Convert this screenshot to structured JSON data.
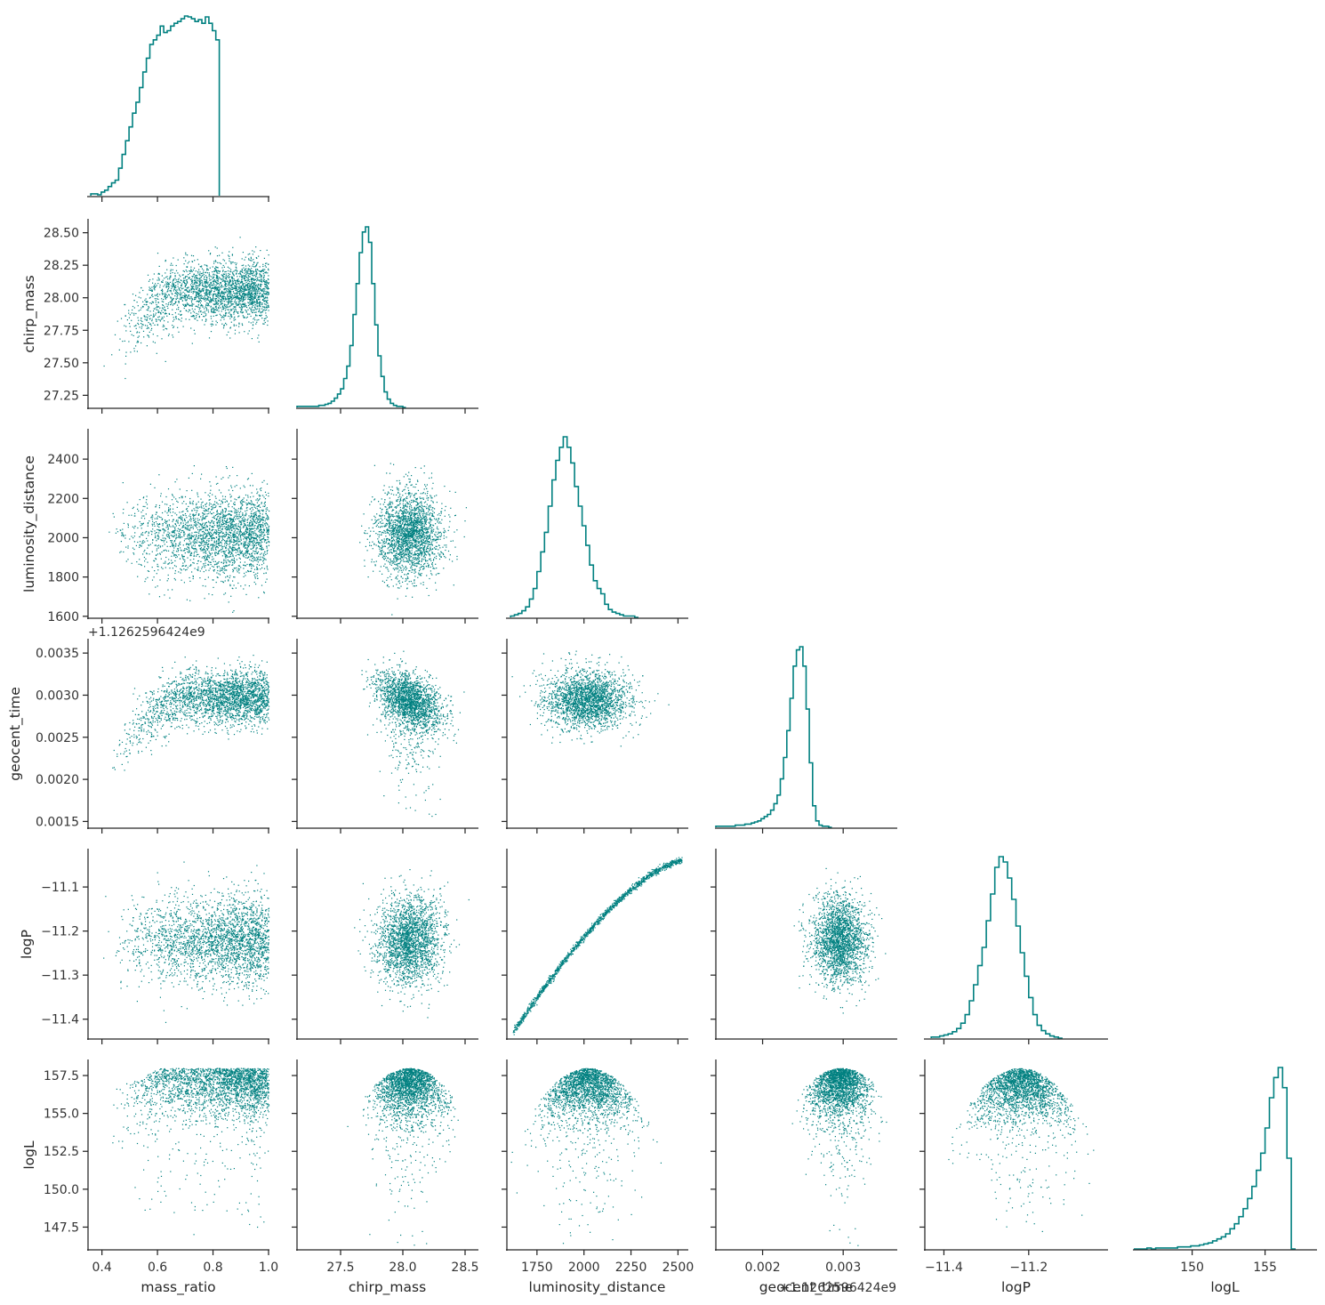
{
  "chart_data": {
    "type": "corner_pairplot",
    "color": "#008080",
    "variables": [
      "mass_ratio",
      "chirp_mass",
      "luminosity_distance",
      "geocent_time",
      "logP",
      "logL"
    ],
    "axis_labels": {
      "x": [
        "mass_ratio",
        "chirp_mass",
        "luminosity_distance",
        "geocent_time",
        "logP",
        "logL"
      ],
      "y": [
        "",
        "chirp_mass",
        "luminosity_distance",
        "geocent_time",
        "logP",
        "logL"
      ]
    },
    "offset_labels": {
      "geocent_time_y": "+1.1262596424e9",
      "geocent_time_x": "+1.1262596424e9"
    },
    "ranges": {
      "mass_ratio": [
        0.35,
        1.0
      ],
      "chirp_mass": [
        27.15,
        28.6
      ],
      "luminosity_distance": [
        1590,
        2550
      ],
      "geocent_time": [
        0.00142,
        0.00366
      ],
      "logP": [
        -11.445,
        -11.015
      ],
      "logL": [
        146.0,
        158.5
      ]
    },
    "ticks": {
      "mass_ratio": [
        0.4,
        0.6,
        0.8,
        1.0
      ],
      "chirp_mass": [
        27.25,
        27.5,
        27.75,
        28.0,
        28.25,
        28.5
      ],
      "chirp_mass_x": [
        27.5,
        28.0,
        28.5
      ],
      "luminosity_distance": [
        1600,
        1800,
        2000,
        2200,
        2400
      ],
      "luminosity_distance_x": [
        1750,
        2000,
        2250,
        2500
      ],
      "geocent_time": [
        0.0015,
        0.002,
        0.0025,
        0.003,
        0.0035
      ],
      "geocent_time_x": [
        0.002,
        0.003
      ],
      "logP": [
        -11.4,
        -11.3,
        -11.2,
        -11.1
      ],
      "logP_x": [
        -11.4,
        -11.2
      ],
      "logL": [
        147.5,
        150.0,
        152.5,
        155.0,
        157.5
      ],
      "logL_x": [
        150,
        155
      ]
    },
    "tick_labels": {
      "mass_ratio": [
        "0.4",
        "0.6",
        "0.8",
        "1.0"
      ],
      "chirp_mass": [
        "27.25",
        "27.50",
        "27.75",
        "28.00",
        "28.25",
        "28.50"
      ],
      "chirp_mass_x": [
        "27.5",
        "28.0",
        "28.5"
      ],
      "luminosity_distance": [
        "1600",
        "1800",
        "2000",
        "2200",
        "2400"
      ],
      "luminosity_distance_x": [
        "1750",
        "2000",
        "2250",
        "2500"
      ],
      "geocent_time": [
        "0.0015",
        "0.0020",
        "0.0025",
        "0.0030",
        "0.0035"
      ],
      "geocent_time_x": [
        "0.002",
        "0.003"
      ],
      "logP": [
        "−11.4",
        "−11.3",
        "−11.2",
        "−11.1"
      ],
      "logP_x": [
        "−11.4",
        "−11.2"
      ],
      "logL": [
        "147.5",
        "150.0",
        "152.5",
        "155.0",
        "157.5"
      ],
      "logL_x": [
        "150",
        "155"
      ]
    },
    "marginals": {
      "mass_ratio": {
        "type": "step_histogram",
        "edges_start": 0.36,
        "bin_width": 0.0125,
        "counts": [
          2,
          2,
          1,
          4,
          6,
          10,
          14,
          17,
          30,
          45,
          60,
          75,
          90,
          102,
          118,
          135,
          150,
          165,
          170,
          175,
          185,
          178,
          180,
          185,
          188,
          190,
          193,
          196,
          195,
          193,
          190,
          192,
          188,
          195,
          188,
          180,
          170
        ]
      },
      "chirp_mass": {
        "type": "step_histogram",
        "edges_start": 27.15,
        "bin_width": 0.025,
        "counts": [
          1,
          1,
          1,
          1,
          1,
          1,
          1,
          2,
          2,
          3,
          4,
          6,
          9,
          13,
          18,
          28,
          40,
          60,
          90,
          120,
          150,
          170,
          175,
          160,
          120,
          80,
          50,
          30,
          15,
          8,
          4,
          2,
          1,
          1,
          0
        ]
      },
      "luminosity_distance": {
        "type": "step_histogram",
        "edges_start": 1610,
        "bin_width": 20,
        "counts": [
          1,
          2,
          3,
          5,
          8,
          14,
          22,
          35,
          50,
          65,
          85,
          105,
          120,
          130,
          138,
          130,
          118,
          100,
          85,
          70,
          55,
          40,
          28,
          22,
          18,
          10,
          6,
          4,
          3,
          2,
          1,
          1,
          1,
          0
        ]
      },
      "geocent_time": {
        "type": "step_histogram",
        "edges_start": 0.00142,
        "bin_width": 4e-05,
        "counts": [
          1,
          1,
          1,
          1,
          1,
          1,
          2,
          2,
          2,
          3,
          3,
          4,
          5,
          6,
          8,
          10,
          12,
          16,
          22,
          30,
          45,
          65,
          90,
          120,
          150,
          165,
          168,
          150,
          110,
          60,
          20,
          6,
          2,
          1,
          1,
          0
        ]
      },
      "logP": {
        "type": "step_histogram",
        "edges_start": -11.43,
        "bin_width": 0.01,
        "counts": [
          1,
          1,
          2,
          3,
          4,
          6,
          9,
          14,
          22,
          35,
          50,
          68,
          85,
          110,
          135,
          160,
          170,
          165,
          150,
          130,
          105,
          80,
          58,
          38,
          22,
          12,
          7,
          4,
          2,
          1,
          0
        ]
      },
      "logL": {
        "type": "step_histogram",
        "edges_start": 146.0,
        "bin_width": 0.3,
        "counts": [
          0,
          0,
          0,
          1,
          0,
          1,
          1,
          1,
          1,
          1,
          2,
          2,
          2,
          3,
          3,
          4,
          5,
          6,
          8,
          10,
          12,
          15,
          20,
          25,
          32,
          40,
          50,
          62,
          78,
          95,
          120,
          150,
          170,
          180,
          160,
          90,
          0
        ]
      }
    },
    "scatter_pairs": [
      {
        "x": "mass_ratio",
        "y": "chirp_mass",
        "shape": "rising_plateau",
        "n": 2500
      },
      {
        "x": "mass_ratio",
        "y": "luminosity_distance",
        "shape": "uncorrelated",
        "n": 2500
      },
      {
        "x": "chirp_mass",
        "y": "luminosity_distance",
        "shape": "uncorrelated",
        "n": 2200
      },
      {
        "x": "mass_ratio",
        "y": "geocent_time",
        "shape": "rising_plateau",
        "n": 2500
      },
      {
        "x": "chirp_mass",
        "y": "geocent_time",
        "shape": "negative_correlation",
        "n": 2200
      },
      {
        "x": "luminosity_distance",
        "y": "geocent_time",
        "shape": "uncorrelated",
        "n": 2200
      },
      {
        "x": "mass_ratio",
        "y": "logP",
        "shape": "uncorrelated",
        "n": 2500
      },
      {
        "x": "chirp_mass",
        "y": "logP",
        "shape": "uncorrelated",
        "n": 2200
      },
      {
        "x": "luminosity_distance",
        "y": "logP",
        "shape": "monotonic_curve",
        "n": 1500
      },
      {
        "x": "geocent_time",
        "y": "logP",
        "shape": "uncorrelated",
        "n": 2200
      },
      {
        "x": "mass_ratio",
        "y": "logL",
        "shape": "capped_plateau",
        "n": 2500
      },
      {
        "x": "chirp_mass",
        "y": "logL",
        "shape": "dome",
        "n": 2200
      },
      {
        "x": "luminosity_distance",
        "y": "logL",
        "shape": "dome",
        "n": 2200
      },
      {
        "x": "geocent_time",
        "y": "logL",
        "shape": "dome",
        "n": 2200
      },
      {
        "x": "logP",
        "y": "logL",
        "shape": "dome",
        "n": 2200
      }
    ],
    "grid": false,
    "legend": "none"
  }
}
